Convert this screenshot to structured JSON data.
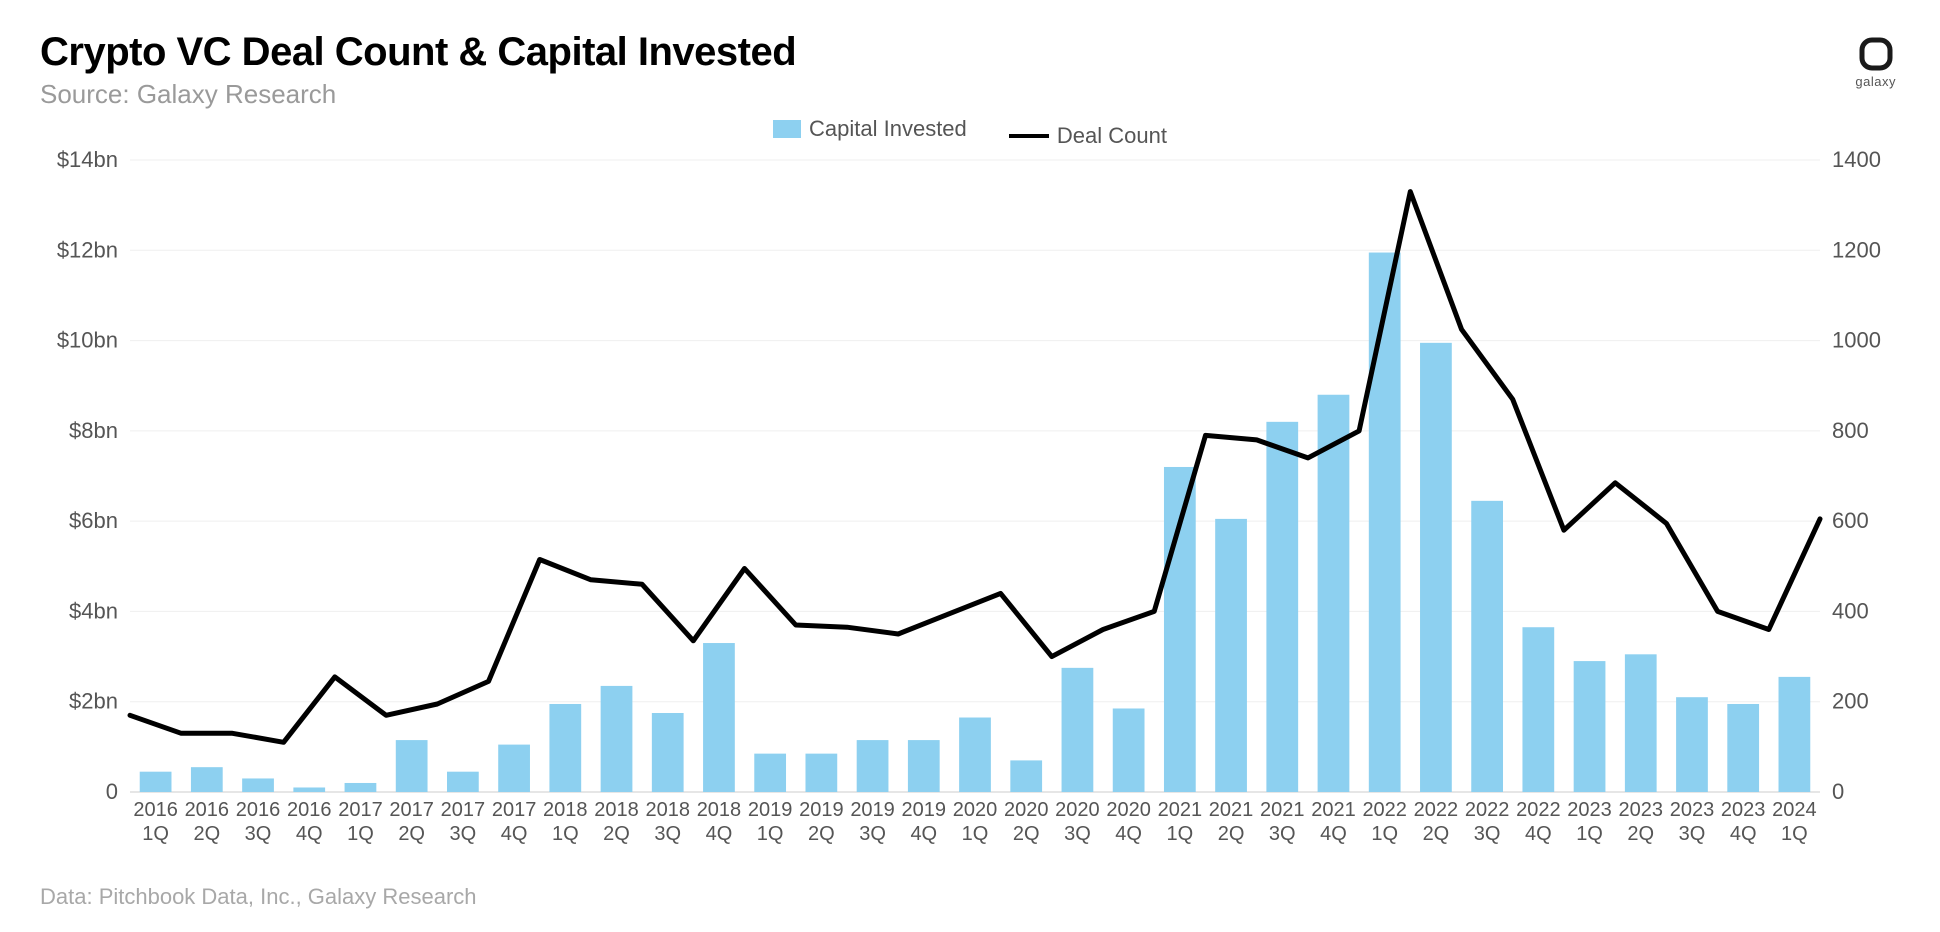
{
  "title": "Crypto VC Deal Count & Capital Invested",
  "subtitle": "Source: Galaxy Research",
  "footnote": "Data: Pitchbook Data, Inc., Galaxy Research",
  "brand": {
    "name": "galaxy"
  },
  "legend": {
    "capital_label": "Capital Invested",
    "deals_label": "Deal Count"
  },
  "chart": {
    "type": "bar+line",
    "background_color": "#ffffff",
    "grid_color": "#efefef",
    "baseline_color": "#cccccc",
    "bar_color": "#8dd0f0",
    "line_color": "#000000",
    "line_width": 5,
    "bar_width_ratio": 0.62,
    "axis_label_color": "#555555",
    "axis_fontsize": 22,
    "x_fontsize": 20,
    "left_axis": {
      "min": 0,
      "max": 14,
      "tick_step": 2,
      "tick_labels": [
        "0",
        "$2bn",
        "$4bn",
        "$6bn",
        "$8bn",
        "$10bn",
        "$12bn",
        "$14bn"
      ]
    },
    "right_axis": {
      "min": 0,
      "max": 1400,
      "tick_step": 200,
      "tick_labels": [
        "0",
        "200",
        "400",
        "600",
        "800",
        "1000",
        "1200",
        "1400"
      ]
    },
    "categories": [
      "2016 1Q",
      "2016 2Q",
      "2016 3Q",
      "2016 4Q",
      "2017 1Q",
      "2017 2Q",
      "2017 3Q",
      "2017 4Q",
      "2018 1Q",
      "2018 2Q",
      "2018 3Q",
      "2018 4Q",
      "2019 1Q",
      "2019 2Q",
      "2019 3Q",
      "2019 4Q",
      "2020 1Q",
      "2020 2Q",
      "2020 3Q",
      "2020 4Q",
      "2021 1Q",
      "2021 2Q",
      "2021 3Q",
      "2021 4Q",
      "2022 1Q",
      "2022 2Q",
      "2022 3Q",
      "2022 4Q",
      "2023 1Q",
      "2023 2Q",
      "2023 3Q",
      "2023 4Q",
      "2024 1Q"
    ],
    "capital_invested_bn": [
      0.45,
      0.55,
      0.3,
      0.1,
      0.2,
      1.15,
      0.45,
      1.05,
      1.95,
      2.35,
      1.75,
      3.3,
      0.85,
      0.85,
      1.15,
      1.15,
      1.65,
      0.7,
      2.75,
      1.85,
      7.2,
      6.05,
      8.2,
      8.8,
      11.95,
      9.95,
      6.45,
      3.65,
      2.9,
      3.05,
      2.1,
      1.95,
      2.55
    ],
    "deal_count": [
      170,
      130,
      130,
      110,
      255,
      170,
      195,
      245,
      515,
      470,
      460,
      335,
      495,
      370,
      365,
      350,
      395,
      440,
      300,
      360,
      400,
      790,
      780,
      740,
      800,
      1330,
      1025,
      870,
      580,
      685,
      595,
      400,
      360,
      605
    ],
    "deal_count_note": "deal_count has one more point than categories; x positions are category boundaries (left edges) so the line starts at the left-axis and ends at the right-axis."
  }
}
